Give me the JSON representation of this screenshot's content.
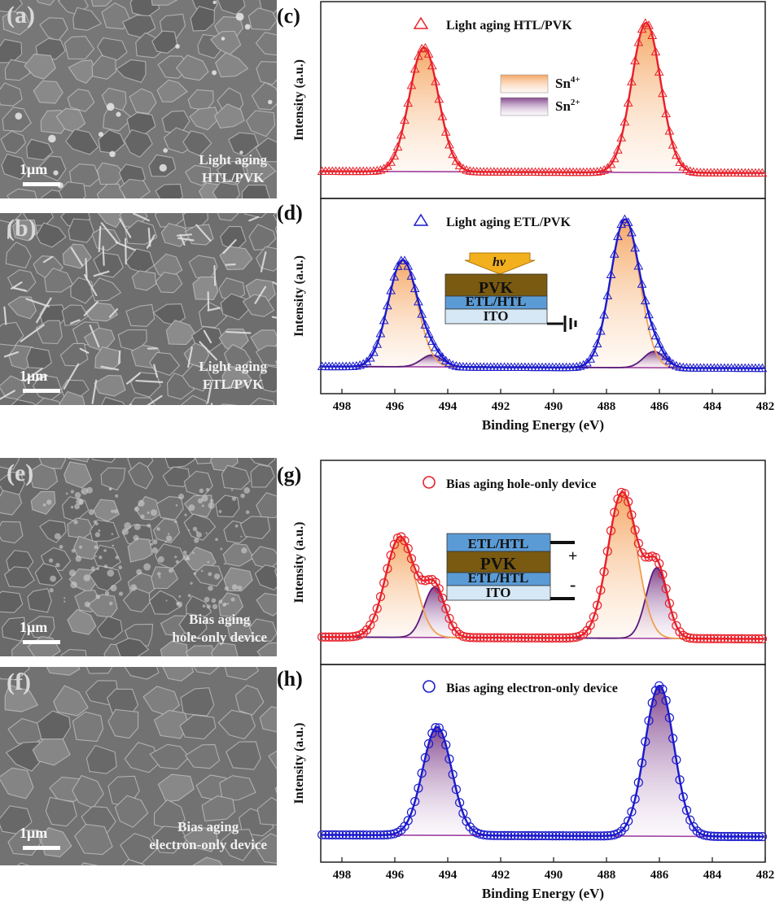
{
  "sem_panels": [
    {
      "letter": "(a)",
      "label_lines": [
        "Light aging",
        "HTL/PVK"
      ],
      "scale": "1μm",
      "texture": "grains-clean"
    },
    {
      "letter": "(b)",
      "label_lines": [
        "Light aging",
        "ETL/PVK"
      ],
      "scale": "1μm",
      "texture": "grains-rods"
    },
    {
      "letter": "(e)",
      "label_lines": [
        "Bias aging",
        "hole-only device"
      ],
      "scale": "1μm",
      "texture": "grains-rough"
    },
    {
      "letter": "(f)",
      "label_lines": [
        "Bias aging",
        "electron-only device"
      ],
      "scale": "1μm",
      "texture": "grains-smooth"
    }
  ],
  "colors": {
    "red": "#e8202a",
    "blue": "#1a1acc",
    "fit_orange": "#f0a050",
    "fit_purple": "#5a1a7a",
    "baseline": "#a040a0",
    "pvk": "#7a5a10",
    "etl": "#5b9bd5",
    "ito": "#d6e8f5",
    "arrow": "#f2b01e"
  },
  "legend_c": {
    "sn4": "Sn",
    "sn4_sup": "4+",
    "sn2": "Sn",
    "sn2_sup": "2+"
  },
  "chart_data": [
    {
      "panel": "(c)",
      "type": "line",
      "title": "Light aging HTL/PVK",
      "marker": "triangle",
      "color": "red",
      "ylabel": "Intensity (a.u.)",
      "xlabel": "",
      "xlim": [
        498.8,
        482.0
      ],
      "x_ticks": [],
      "peaks": [
        {
          "species": "Sn4+",
          "center": 494.9,
          "height": 0.83,
          "width": 0.55
        },
        {
          "species": "Sn4+",
          "center": 486.5,
          "height": 1.0,
          "width": 0.55
        }
      ],
      "sn2_peaks": []
    },
    {
      "panel": "(d)",
      "type": "line",
      "title": "Light aging ETL/PVK",
      "marker": "triangle",
      "color": "blue",
      "ylabel": "Intensity (a.u.)",
      "xlabel": "Binding Energy (eV)",
      "xlim": [
        498.8,
        482.0
      ],
      "x_ticks": [
        "498",
        "496",
        "494",
        "492",
        "490",
        "488",
        "486",
        "484",
        "482"
      ],
      "peaks": [
        {
          "species": "Sn4+",
          "center": 495.7,
          "height": 0.72,
          "width": 0.55
        },
        {
          "species": "Sn4+",
          "center": 487.3,
          "height": 1.0,
          "width": 0.55
        }
      ],
      "sn2_peaks": [
        {
          "species": "Sn2+",
          "center": 494.6,
          "height": 0.08,
          "width": 0.4
        },
        {
          "species": "Sn2+",
          "center": 486.2,
          "height": 0.11,
          "width": 0.4
        }
      ],
      "inset": {
        "arrow": "hν",
        "layers": [
          "PVK",
          "ETL/HTL",
          "ITO"
        ]
      }
    },
    {
      "panel": "(g)",
      "type": "line",
      "title": "Bias aging hole-only device",
      "marker": "circle",
      "color": "red",
      "ylabel": "Intensity (a.u.)",
      "xlabel": "",
      "xlim": [
        498.8,
        482.0
      ],
      "x_ticks": [],
      "peaks": [
        {
          "species": "Sn4+",
          "center": 495.8,
          "height": 0.64,
          "width": 0.55
        },
        {
          "species": "Sn4+",
          "center": 487.4,
          "height": 0.93,
          "width": 0.55
        }
      ],
      "sn2_peaks": [
        {
          "species": "Sn2+",
          "center": 494.5,
          "height": 0.32,
          "width": 0.4
        },
        {
          "species": "Sn2+",
          "center": 486.1,
          "height": 0.45,
          "width": 0.4
        }
      ],
      "inset": {
        "layers": [
          "ETL/HTL",
          "PVK",
          "ETL/HTL",
          "ITO"
        ],
        "plus": "+",
        "minus": "-"
      }
    },
    {
      "panel": "(h)",
      "type": "line",
      "title": "Bias aging electron-only device",
      "marker": "circle",
      "color": "blue",
      "ylabel": "Intensity (a.u.)",
      "xlabel": "Binding Energy (eV)",
      "xlim": [
        498.8,
        482.0
      ],
      "x_ticks": [
        "498",
        "496",
        "494",
        "492",
        "490",
        "488",
        "486",
        "484",
        "482"
      ],
      "peaks": [
        {
          "species": "Sn2+",
          "center": 494.4,
          "height": 0.72,
          "width": 0.55
        },
        {
          "species": "Sn2+",
          "center": 486.0,
          "height": 1.0,
          "width": 0.55
        }
      ],
      "sn2_peaks": []
    }
  ]
}
